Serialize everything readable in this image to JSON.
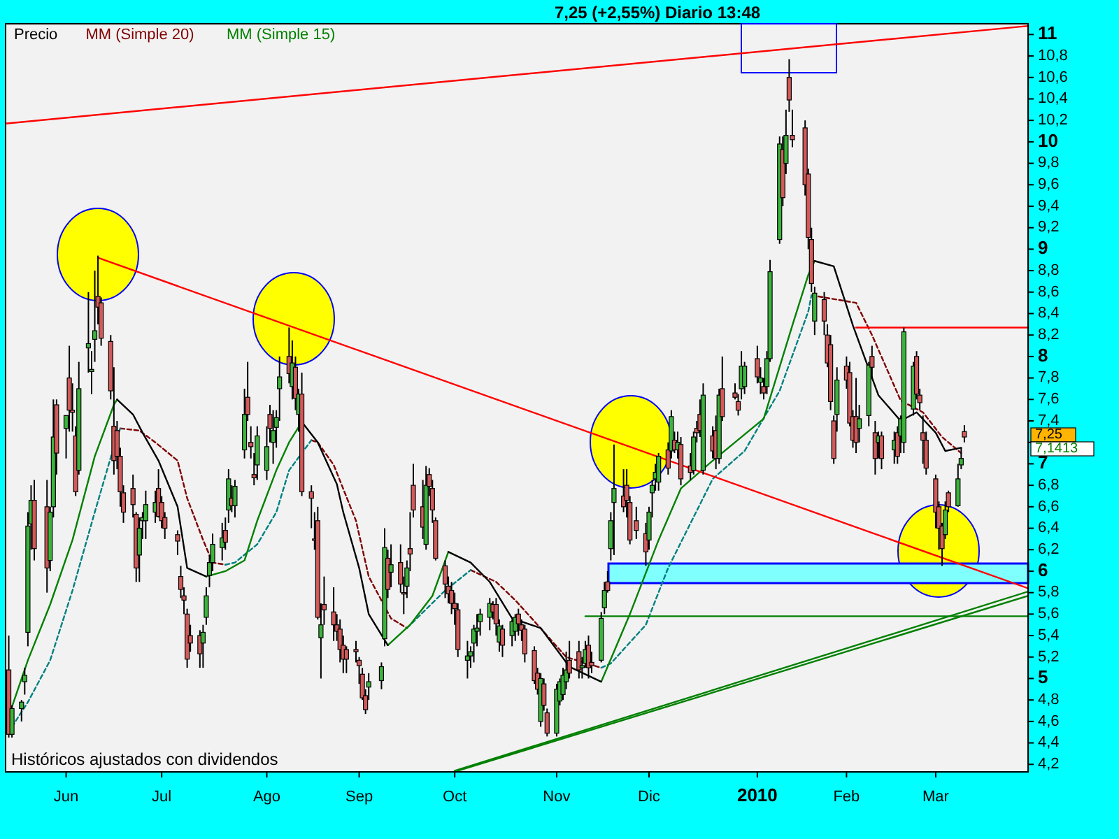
{
  "chart_data": {
    "type": "candlestick",
    "title": "7,25 (+2,55%)    Diario  13:48",
    "annotations": [
      "Históricos ajustados con dividendos",
      "7,25",
      "7,1413"
    ],
    "legend": "top left",
    "grid": false,
    "xlim": [
      "2009-05-13",
      "2010-03-30"
    ],
    "xticks": [
      {
        "value": "2009-06-01",
        "label": "Jun"
      },
      {
        "value": "2009-07-01",
        "label": "Jul"
      },
      {
        "value": "2009-08-03",
        "label": "Ago"
      },
      {
        "value": "2009-09-01",
        "label": "Sep"
      },
      {
        "value": "2009-10-01",
        "label": "Oct"
      },
      {
        "value": "2009-11-02",
        "label": "Nov"
      },
      {
        "value": "2009-12-01",
        "label": "Dic"
      },
      {
        "value": "2010-01-04",
        "label": "2010"
      },
      {
        "value": "2010-02-01",
        "label": "Feb"
      },
      {
        "value": "2010-03-01",
        "label": "Mar"
      }
    ],
    "ylim": [
      4.13,
      11.1
    ],
    "yticks": [
      {
        "value": 4.2,
        "label": "4,2"
      },
      {
        "value": 4.4,
        "label": "4,4"
      },
      {
        "value": 4.6,
        "label": "4,6"
      },
      {
        "value": 4.8,
        "label": "4,8"
      },
      5,
      {
        "value": 5.2,
        "label": "5,2"
      },
      {
        "value": 5.4,
        "label": "5,4"
      },
      {
        "value": 5.6,
        "label": "5,6"
      },
      {
        "value": 5.8,
        "label": "5,8"
      },
      6,
      {
        "value": 6.2,
        "label": "6,2"
      },
      {
        "value": 6.4,
        "label": "6,4"
      },
      {
        "value": 6.6,
        "label": "6,6"
      },
      {
        "value": 6.8,
        "label": "6,8"
      },
      7,
      {
        "value": 7.2,
        "label": null
      },
      {
        "value": 7.4,
        "label": "7,4"
      },
      {
        "value": 7.6,
        "label": "7,6"
      },
      {
        "value": 7.8,
        "label": "7,8"
      },
      8,
      {
        "value": 8.2,
        "label": "8,2"
      },
      {
        "value": 8.4,
        "label": "8,4"
      },
      {
        "value": 8.6,
        "label": "8,6"
      },
      {
        "value": 8.8,
        "label": "8,8"
      },
      9,
      {
        "value": 9.2,
        "label": "9,2"
      },
      {
        "value": 9.4,
        "label": "9,4"
      },
      {
        "value": 9.6,
        "label": "9,6"
      },
      {
        "value": 9.8,
        "label": "9,8"
      },
      10,
      {
        "value": 10.2,
        "label": "10,2"
      },
      {
        "value": 10.4,
        "label": "10,4"
      },
      {
        "value": 10.6,
        "label": "10,6"
      },
      {
        "value": 10.8,
        "label": "10,8"
      },
      11
    ],
    "x": [
      "2009-05-14",
      "2009-05-15",
      "2009-05-18",
      "2009-05-19",
      "2009-05-20",
      "2009-05-21",
      "2009-05-22",
      "2009-05-26",
      "2009-05-27",
      "2009-05-28",
      "2009-05-29",
      "2009-06-01",
      "2009-06-02",
      "2009-06-03",
      "2009-06-04",
      "2009-06-05",
      "2009-06-08",
      "2009-06-09",
      "2009-06-10",
      "2009-06-11",
      "2009-06-12",
      "2009-06-15",
      "2009-06-16",
      "2009-06-17",
      "2009-06-18",
      "2009-06-19",
      "2009-06-22",
      "2009-06-23",
      "2009-06-24",
      "2009-06-25",
      "2009-06-26",
      "2009-06-29",
      "2009-06-30",
      "2009-07-01",
      "2009-07-02",
      "2009-07-06",
      "2009-07-07",
      "2009-07-08",
      "2009-07-09",
      "2009-07-10",
      "2009-07-13",
      "2009-07-14",
      "2009-07-15",
      "2009-07-16",
      "2009-07-17",
      "2009-07-20",
      "2009-07-21",
      "2009-07-22",
      "2009-07-23",
      "2009-07-24",
      "2009-07-27",
      "2009-07-28",
      "2009-07-29",
      "2009-07-30",
      "2009-07-31",
      "2009-08-03",
      "2009-08-04",
      "2009-08-05",
      "2009-08-06",
      "2009-08-07",
      "2009-08-10",
      "2009-08-11",
      "2009-08-12",
      "2009-08-13",
      "2009-08-14",
      "2009-08-17",
      "2009-08-18",
      "2009-08-19",
      "2009-08-20",
      "2009-08-21",
      "2009-08-24",
      "2009-08-25",
      "2009-08-26",
      "2009-08-27",
      "2009-08-28",
      "2009-08-31",
      "2009-09-01",
      "2009-09-02",
      "2009-09-03",
      "2009-09-04",
      "2009-09-08",
      "2009-09-09",
      "2009-09-10",
      "2009-09-11",
      "2009-09-14",
      "2009-09-15",
      "2009-09-16",
      "2009-09-17",
      "2009-09-18",
      "2009-09-21",
      "2009-09-22",
      "2009-09-23",
      "2009-09-24",
      "2009-09-25",
      "2009-09-28",
      "2009-09-29",
      "2009-09-30",
      "2009-10-01",
      "2009-10-02",
      "2009-10-05",
      "2009-10-06",
      "2009-10-07",
      "2009-10-08",
      "2009-10-09",
      "2009-10-12",
      "2009-10-13",
      "2009-10-14",
      "2009-10-15",
      "2009-10-16",
      "2009-10-19",
      "2009-10-20",
      "2009-10-21",
      "2009-10-22",
      "2009-10-23",
      "2009-10-26",
      "2009-10-27",
      "2009-10-28",
      "2009-10-29",
      "2009-10-30",
      "2009-11-02",
      "2009-11-03",
      "2009-11-04",
      "2009-11-05",
      "2009-11-06",
      "2009-11-09",
      "2009-11-10",
      "2009-11-11",
      "2009-11-12",
      "2009-11-13",
      "2009-11-16",
      "2009-11-17",
      "2009-11-18",
      "2009-11-19",
      "2009-11-20",
      "2009-11-23",
      "2009-11-24",
      "2009-11-25",
      "2009-11-27",
      "2009-11-30",
      "2009-12-01",
      "2009-12-02",
      "2009-12-03",
      "2009-12-04",
      "2009-12-07",
      "2009-12-08",
      "2009-12-09",
      "2009-12-10",
      "2009-12-11",
      "2009-12-14",
      "2009-12-15",
      "2009-12-16",
      "2009-12-17",
      "2009-12-18",
      "2009-12-21",
      "2009-12-22",
      "2009-12-23",
      "2009-12-24",
      "2009-12-28",
      "2009-12-29",
      "2009-12-30",
      "2009-12-31",
      "2010-01-04",
      "2010-01-05",
      "2010-01-06",
      "2010-01-07",
      "2010-01-08",
      "2010-01-11",
      "2010-01-12",
      "2010-01-13",
      "2010-01-14",
      "2010-01-15",
      "2010-01-19",
      "2010-01-20",
      "2010-01-21",
      "2010-01-22",
      "2010-01-25",
      "2010-01-26",
      "2010-01-27",
      "2010-01-28",
      "2010-01-29",
      "2010-02-01",
      "2010-02-02",
      "2010-02-03",
      "2010-02-04",
      "2010-02-05",
      "2010-02-08",
      "2010-02-09",
      "2010-02-10",
      "2010-02-11",
      "2010-02-12",
      "2010-02-16",
      "2010-02-17",
      "2010-02-18",
      "2010-02-19",
      "2010-02-22",
      "2010-02-23",
      "2010-02-24",
      "2010-02-25",
      "2010-02-26",
      "2010-03-01",
      "2010-03-02",
      "2010-03-03",
      "2010-03-04",
      "2010-03-05",
      "2010-03-08",
      "2010-03-09",
      "2010-03-10"
    ],
    "series": [
      {
        "name": "Precio",
        "color": "#000000",
        "ohlc": [
          [
            5.08,
            5.4,
            4.45,
            4.48
          ],
          [
            4.48,
            4.75,
            4.45,
            4.72
          ],
          [
            4.72,
            4.8,
            4.6,
            4.78
          ],
          [
            4.97,
            5.1,
            4.85,
            5.03
          ],
          [
            5.43,
            6.55,
            5.3,
            6.42
          ],
          [
            6.44,
            6.8,
            6.2,
            6.66
          ],
          [
            6.66,
            6.85,
            6.1,
            6.21
          ],
          [
            6.6,
            6.85,
            5.8,
            6.03
          ],
          [
            6.1,
            6.6,
            6.0,
            6.55
          ],
          [
            6.6,
            7.6,
            6.5,
            7.25
          ],
          [
            7.55,
            7.6,
            6.9,
            7.1
          ],
          [
            7.33,
            7.45,
            7.05,
            7.45
          ],
          [
            7.8,
            8.1,
            7.3,
            7.5
          ],
          [
            7.5,
            7.75,
            7.3,
            7.48
          ],
          [
            7.26,
            7.35,
            6.7,
            6.74
          ],
          [
            6.94,
            7.95,
            6.9,
            7.7
          ],
          [
            8.08,
            8.6,
            7.85,
            8.12
          ],
          [
            7.86,
            8.05,
            7.65,
            7.88
          ],
          [
            8.16,
            8.8,
            7.95,
            8.24
          ],
          [
            8.56,
            8.94,
            8.3,
            8.46
          ],
          [
            8.5,
            8.55,
            8.1,
            8.17
          ],
          [
            8.14,
            8.2,
            7.6,
            7.68
          ],
          [
            7.35,
            7.9,
            6.9,
            7.03
          ],
          [
            7.31,
            7.4,
            6.95,
            7.07
          ],
          [
            7.07,
            7.15,
            6.6,
            6.74
          ],
          [
            6.73,
            6.8,
            6.45,
            6.55
          ],
          [
            6.77,
            6.9,
            6.5,
            6.62
          ],
          [
            6.53,
            6.55,
            5.9,
            6.03
          ],
          [
            6.15,
            6.5,
            5.9,
            6.4
          ],
          [
            6.47,
            6.55,
            6.3,
            6.5
          ],
          [
            6.47,
            6.75,
            6.3,
            6.62
          ],
          [
            6.55,
            6.75,
            6.45,
            6.64
          ],
          [
            6.77,
            6.95,
            6.5,
            6.51
          ],
          [
            6.64,
            6.7,
            6.4,
            6.47
          ],
          [
            6.5,
            6.55,
            6.3,
            6.4
          ],
          [
            6.34,
            6.38,
            6.15,
            6.28
          ],
          [
            5.95,
            6.05,
            5.75,
            5.83
          ],
          [
            5.77,
            5.85,
            5.6,
            5.73
          ],
          [
            5.6,
            5.65,
            5.1,
            5.18
          ],
          [
            5.4,
            5.5,
            5.25,
            5.33
          ],
          [
            5.4,
            5.45,
            5.1,
            5.23
          ],
          [
            5.33,
            5.5,
            5.1,
            5.43
          ],
          [
            5.57,
            5.85,
            5.5,
            5.77
          ],
          [
            5.96,
            6.15,
            5.85,
            6.08
          ],
          [
            6.08,
            6.35,
            6.0,
            6.25
          ],
          [
            6.22,
            6.45,
            6.1,
            6.31
          ],
          [
            6.38,
            6.5,
            6.2,
            6.27
          ],
          [
            6.57,
            6.95,
            6.45,
            6.86
          ],
          [
            6.68,
            6.8,
            6.55,
            6.61
          ],
          [
            6.61,
            6.85,
            6.5,
            6.79
          ],
          [
            7.13,
            7.7,
            7.05,
            7.46
          ],
          [
            7.62,
            7.95,
            7.4,
            7.46
          ],
          [
            7.2,
            7.35,
            7.05,
            7.16
          ],
          [
            6.9,
            7.1,
            6.8,
            6.87
          ],
          [
            6.99,
            7.35,
            6.85,
            7.26
          ],
          [
            6.94,
            7.35,
            6.85,
            7.16
          ],
          [
            7.46,
            7.55,
            7.2,
            7.33
          ],
          [
            7.2,
            7.5,
            7.0,
            7.31
          ],
          [
            7.34,
            7.5,
            7.15,
            7.43
          ],
          [
            7.7,
            8.0,
            7.4,
            7.81
          ],
          [
            8.0,
            8.27,
            7.75,
            7.84
          ],
          [
            7.72,
            8.15,
            7.6,
            7.94
          ],
          [
            7.9,
            8.0,
            7.5,
            7.61
          ],
          [
            7.46,
            7.7,
            7.3,
            7.65
          ],
          [
            7.65,
            7.85,
            6.7,
            6.74
          ],
          [
            6.74,
            6.8,
            6.4,
            6.68
          ],
          [
            6.3,
            6.55,
            6.2,
            6.29
          ],
          [
            6.47,
            6.6,
            5.55,
            5.57
          ],
          [
            5.38,
            5.7,
            5.0,
            5.5
          ],
          [
            5.69,
            5.95,
            5.5,
            5.64
          ],
          [
            5.62,
            5.85,
            5.35,
            5.5
          ],
          [
            5.5,
            5.6,
            5.35,
            5.44
          ],
          [
            5.46,
            5.55,
            5.15,
            5.27
          ],
          [
            5.31,
            5.4,
            5.05,
            5.18
          ],
          [
            5.27,
            5.3,
            5.05,
            5.18
          ],
          [
            5.27,
            5.35,
            5.15,
            5.25
          ],
          [
            5.17,
            5.2,
            4.95,
            5.12
          ],
          [
            5.04,
            5.1,
            4.8,
            4.82
          ],
          [
            4.84,
            4.9,
            4.67,
            4.71
          ],
          [
            4.92,
            5.05,
            4.8,
            4.97
          ],
          [
            4.98,
            5.15,
            4.9,
            5.11
          ],
          [
            5.37,
            6.4,
            5.3,
            6.22
          ],
          [
            6.12,
            6.2,
            5.75,
            5.83
          ],
          [
            5.99,
            6.25,
            5.85,
            6.06
          ],
          [
            6.08,
            6.25,
            5.8,
            5.88
          ],
          [
            5.8,
            5.95,
            5.6,
            5.79
          ],
          [
            5.86,
            6.1,
            5.75,
            6.03
          ],
          [
            6.21,
            6.55,
            6.0,
            6.16
          ],
          [
            6.8,
            7.0,
            6.5,
            6.57
          ],
          [
            6.6,
            6.85,
            6.3,
            6.41
          ],
          [
            6.25,
            6.98,
            6.2,
            6.8
          ],
          [
            6.9,
            6.96,
            6.7,
            6.79
          ],
          [
            6.77,
            6.85,
            6.45,
            6.57
          ],
          [
            6.47,
            6.5,
            6.1,
            6.12
          ],
          [
            6.05,
            6.1,
            5.75,
            5.88
          ],
          [
            5.86,
            5.95,
            5.7,
            5.79
          ],
          [
            5.82,
            5.9,
            5.6,
            5.7
          ],
          [
            5.7,
            5.8,
            5.5,
            5.65
          ],
          [
            5.64,
            5.7,
            5.2,
            5.27
          ],
          [
            5.17,
            5.35,
            5.0,
            5.21
          ],
          [
            5.21,
            5.3,
            5.1,
            5.25
          ],
          [
            5.33,
            5.5,
            5.15,
            5.46
          ],
          [
            5.44,
            5.6,
            5.3,
            5.47
          ],
          [
            5.53,
            5.65,
            5.4,
            5.6
          ],
          [
            5.57,
            5.75,
            5.45,
            5.7
          ],
          [
            5.69,
            5.72,
            5.55,
            5.62
          ],
          [
            5.69,
            5.75,
            5.4,
            5.51
          ],
          [
            5.34,
            5.55,
            5.25,
            5.49
          ],
          [
            5.46,
            5.5,
            5.2,
            5.31
          ],
          [
            5.4,
            5.55,
            5.3,
            5.53
          ],
          [
            5.44,
            5.6,
            5.35,
            5.57
          ],
          [
            5.6,
            5.65,
            5.4,
            5.51
          ],
          [
            5.5,
            5.55,
            5.35,
            5.45
          ],
          [
            5.46,
            5.5,
            5.15,
            5.23
          ],
          [
            5.26,
            5.3,
            4.95,
            4.98
          ],
          [
            5.05,
            5.1,
            4.85,
            4.9
          ],
          [
            4.6,
            5.05,
            4.55,
            5.0
          ],
          [
            4.95,
            5.0,
            4.7,
            4.75
          ],
          [
            4.68,
            4.72,
            4.46,
            4.49
          ],
          [
            4.49,
            4.95,
            4.46,
            4.9
          ],
          [
            4.79,
            5.0,
            4.75,
            4.97
          ],
          [
            4.85,
            5.1,
            4.8,
            5.03
          ],
          [
            4.97,
            5.25,
            4.9,
            5.08
          ],
          [
            5.17,
            5.35,
            5.0,
            5.05
          ],
          [
            5.25,
            5.35,
            5.0,
            5.08
          ],
          [
            5.1,
            5.2,
            5.0,
            5.12
          ],
          [
            5.14,
            5.35,
            5.1,
            5.27
          ],
          [
            5.31,
            5.4,
            5.0,
            5.1
          ],
          [
            5.15,
            5.25,
            5.05,
            5.12
          ],
          [
            5.17,
            5.62,
            5.15,
            5.56
          ],
          [
            5.66,
            5.9,
            5.6,
            5.82
          ],
          [
            5.9,
            6.0,
            5.8,
            5.82
          ],
          [
            6.21,
            6.55,
            6.1,
            6.47
          ],
          [
            6.64,
            7.18,
            6.15,
            6.77
          ],
          [
            6.7,
            6.95,
            6.55,
            6.6
          ],
          [
            6.8,
            6.95,
            6.5,
            6.66
          ],
          [
            6.64,
            6.7,
            6.25,
            6.29
          ],
          [
            6.47,
            6.6,
            6.3,
            6.38
          ],
          [
            6.35,
            6.45,
            6.05,
            6.18
          ],
          [
            6.29,
            6.6,
            6.2,
            6.55
          ],
          [
            6.73,
            6.85,
            6.5,
            6.8
          ],
          [
            6.86,
            7.0,
            6.75,
            6.92
          ],
          [
            6.83,
            7.1,
            6.75,
            7.07
          ],
          [
            7.13,
            7.2,
            6.9,
            6.96
          ],
          [
            7.12,
            7.5,
            7.05,
            7.44
          ],
          [
            7.22,
            7.3,
            7.1,
            7.13
          ],
          [
            7.13,
            7.3,
            7.05,
            7.2
          ],
          [
            7.18,
            7.25,
            6.8,
            6.86
          ],
          [
            6.98,
            7.1,
            6.85,
            6.92
          ],
          [
            6.94,
            7.3,
            6.9,
            7.25
          ],
          [
            7.33,
            7.4,
            7.2,
            7.29
          ],
          [
            7.46,
            7.6,
            7.25,
            7.31
          ],
          [
            6.94,
            7.75,
            6.9,
            7.64
          ],
          [
            7.26,
            7.35,
            7.05,
            7.12
          ],
          [
            7.31,
            7.45,
            6.95,
            7.05
          ],
          [
            7.05,
            7.7,
            7.0,
            7.64
          ],
          [
            7.7,
            8.0,
            7.4,
            7.44
          ],
          [
            7.66,
            7.75,
            7.6,
            7.62
          ],
          [
            7.58,
            7.65,
            7.45,
            7.5
          ],
          [
            7.7,
            8.05,
            7.6,
            7.91
          ],
          [
            7.72,
            7.95,
            7.65,
            7.91
          ],
          [
            7.98,
            8.1,
            7.75,
            7.81
          ],
          [
            7.76,
            7.9,
            7.65,
            7.8
          ],
          [
            7.72,
            7.8,
            7.6,
            7.66
          ],
          [
            7.72,
            8.05,
            7.65,
            7.98
          ],
          [
            7.98,
            8.9,
            7.95,
            8.79
          ],
          [
            9.09,
            10.05,
            9.05,
            9.98
          ],
          [
            9.93,
            10.05,
            9.4,
            9.48
          ],
          [
            9.8,
            10.3,
            9.7,
            10.06
          ],
          [
            10.6,
            10.77,
            10.28,
            10.39
          ],
          [
            10.06,
            10.3,
            9.95,
            10.02
          ],
          [
            10.13,
            10.2,
            9.5,
            9.6
          ],
          [
            9.7,
            9.75,
            9.0,
            9.11
          ],
          [
            9.09,
            9.2,
            8.6,
            8.68
          ],
          [
            8.33,
            8.65,
            8.2,
            8.59
          ],
          [
            8.53,
            8.6,
            8.2,
            8.33
          ],
          [
            8.2,
            8.3,
            7.9,
            7.94
          ],
          [
            8.11,
            8.2,
            7.5,
            7.58
          ],
          [
            7.4,
            7.45,
            7.0,
            7.05
          ],
          [
            7.46,
            7.9,
            7.3,
            7.78
          ],
          [
            7.91,
            8.0,
            7.7,
            7.78
          ],
          [
            7.85,
            7.95,
            7.35,
            7.38
          ],
          [
            7.44,
            7.5,
            7.15,
            7.22
          ],
          [
            7.44,
            7.8,
            7.1,
            7.2
          ],
          [
            7.33,
            7.55,
            7.2,
            7.42
          ],
          [
            7.45,
            7.95,
            7.35,
            7.92
          ],
          [
            8.0,
            8.1,
            7.8,
            7.9
          ],
          [
            7.29,
            7.4,
            6.9,
            7.05
          ],
          [
            7.2,
            7.3,
            7.05,
            7.26
          ],
          [
            7.26,
            7.3,
            6.95,
            7.05
          ],
          [
            7.13,
            7.3,
            7.0,
            7.22
          ],
          [
            7.29,
            7.35,
            7.0,
            7.07
          ],
          [
            7.26,
            7.45,
            7.1,
            7.42
          ],
          [
            7.2,
            8.27,
            7.1,
            8.23
          ],
          [
            7.51,
            7.95,
            7.45,
            7.91
          ],
          [
            8.0,
            8.05,
            7.6,
            7.65
          ],
          [
            7.64,
            7.7,
            7.5,
            7.57
          ],
          [
            7.29,
            7.45,
            7.0,
            7.22
          ],
          [
            7.22,
            7.3,
            6.9,
            6.96
          ],
          [
            6.86,
            6.9,
            6.4,
            6.55
          ],
          [
            6.6,
            6.65,
            6.2,
            6.4
          ],
          [
            6.42,
            6.45,
            6.05,
            6.21
          ],
          [
            6.34,
            6.65,
            6.3,
            6.57
          ],
          [
            6.73,
            6.75,
            6.55,
            6.6
          ],
          [
            6.61,
            7.0,
            6.6,
            6.86
          ],
          [
            6.99,
            7.15,
            6.95,
            7.05
          ],
          [
            7.3,
            7.36,
            7.2,
            7.25
          ]
        ]
      },
      {
        "type": "line",
        "name": "MM (Simple 20)",
        "color": "#800000",
        "line_style": "dashed",
        "x": [
          "2009-06-18",
          "2009-06-24",
          "2009-06-29",
          "2009-07-06",
          "2009-07-09",
          "2009-07-14",
          "2009-07-17",
          "2009-07-21",
          "2009-07-24",
          "2009-07-31",
          "2009-08-06",
          "2009-08-10",
          "2009-08-17",
          "2009-08-19",
          "2009-08-24",
          "2009-08-31",
          "2009-09-04",
          "2009-09-11",
          "2009-09-16",
          "2009-09-28",
          "2009-10-06",
          "2009-10-14",
          "2009-10-20",
          "2009-10-27",
          "2009-11-05",
          "2009-11-16",
          "2009-11-19",
          "2009-11-30",
          "2009-12-07",
          "2009-12-21",
          "2009-12-31",
          "2010-01-11",
          "2010-01-20",
          "2010-01-21",
          "2010-02-04",
          "2010-02-09",
          "2010-02-18",
          "2010-02-25",
          "2010-03-03",
          "2010-03-09"
        ],
        "values": [
          7.33,
          7.31,
          7.2,
          7.03,
          6.68,
          6.29,
          6.08,
          6.06,
          null,
          null,
          null,
          null,
          7.22,
          7.2,
          6.99,
          6.47,
          5.95,
          5.56,
          5.47,
          null,
          6.01,
          5.9,
          5.73,
          5.5,
          5.2,
          5.1,
          null,
          null,
          null,
          null,
          null,
          null,
          null,
          8.57,
          8.5,
          8.2,
          7.59,
          7.48,
          7.25,
          7.1
        ]
      },
      {
        "type": "line",
        "color": "#008080",
        "line_style": "dashed",
        "x": [
          "2009-05-15",
          "2009-05-20",
          "2009-05-27",
          "2009-06-03",
          "2009-06-10",
          "2009-06-16",
          "2009-06-18",
          "2009-06-24",
          "2009-06-29",
          "2009-07-06",
          "2009-07-09",
          "2009-07-14",
          "2009-07-17",
          "2009-07-21",
          "2009-07-24",
          "2009-07-31",
          "2009-08-06",
          "2009-08-10",
          "2009-08-17",
          "2009-08-19",
          "2009-08-24",
          "2009-08-31",
          "2009-09-04",
          "2009-09-11",
          "2009-09-16",
          "2009-09-28",
          "2009-10-06",
          "2009-10-14",
          "2009-10-20",
          "2009-10-27",
          "2009-11-05",
          "2009-11-16",
          "2009-11-19",
          "2009-11-30",
          "2009-12-07",
          "2009-12-21",
          "2009-12-31",
          "2010-01-11",
          "2010-01-20",
          "2010-01-21"
        ],
        "values": [
          4.55,
          4.78,
          5.17,
          5.82,
          6.55,
          7.16,
          7.33,
          null,
          null,
          null,
          null,
          null,
          null,
          6.06,
          6.08,
          6.25,
          6.55,
          6.94,
          7.22,
          null,
          null,
          null,
          null,
          null,
          5.47,
          5.82,
          6.01,
          null,
          null,
          null,
          null,
          5.1,
          5.14,
          5.5,
          6.03,
          6.86,
          7.12,
          7.68,
          8.42,
          8.57
        ]
      },
      {
        "type": "line",
        "name": "MM (Simple 15)",
        "color": "#008000",
        "x": [
          "2009-05-14",
          "2009-05-20",
          "2009-05-27",
          "2009-06-03",
          "2009-06-10",
          "2009-06-16",
          "2009-06-17",
          "2009-06-22",
          "2009-06-25",
          "2009-06-30",
          "2009-07-06",
          "2009-07-09",
          "2009-07-15",
          "2009-07-21",
          "2009-07-27",
          "2009-07-31",
          "2009-08-06",
          "2009-08-10",
          "2009-08-14",
          "2009-08-19",
          "2009-08-25",
          "2009-08-27",
          "2009-09-01",
          "2009-09-04",
          "2009-09-10",
          "2009-09-17",
          "2009-09-24",
          "2009-09-29",
          "2009-10-06",
          "2009-10-12",
          "2009-10-19",
          "2009-10-28",
          "2009-11-06",
          "2009-11-16",
          "2009-11-25",
          "2009-12-04",
          "2009-12-11",
          "2009-12-21",
          "2010-01-06",
          "2010-01-15",
          "2010-01-20",
          "2010-01-22"
        ],
        "values": [
          4.65,
          5.17,
          5.69,
          6.29,
          7.07,
          7.55,
          7.6,
          null,
          null,
          null,
          null,
          null,
          5.95,
          6.0,
          6.1,
          6.47,
          6.94,
          7.2,
          7.39,
          null,
          null,
          null,
          null,
          null,
          5.31,
          5.5,
          5.77,
          6.18,
          null,
          null,
          null,
          null,
          null,
          4.97,
          5.6,
          6.29,
          6.77,
          7.03,
          7.42,
          8.29,
          8.76,
          8.89
        ]
      },
      {
        "type": "line",
        "color": "#000000",
        "x": [
          "2009-06-17",
          "2009-06-22",
          "2009-06-25",
          "2009-06-30",
          "2009-07-06",
          "2009-07-09",
          "2009-07-15",
          "2009-07-21",
          "2009-07-27",
          "2009-07-31",
          "2009-08-06",
          "2009-08-10",
          "2009-08-14",
          "2009-08-19",
          "2009-08-25",
          "2009-08-27",
          "2009-09-01",
          "2009-09-04",
          "2009-09-10",
          "2009-09-17",
          "2009-09-24",
          "2009-09-29",
          "2009-10-06",
          "2009-10-12",
          "2009-10-19",
          "2009-10-28",
          "2009-11-06",
          "2009-11-16",
          "2009-11-25",
          "2009-12-04",
          "2009-12-11",
          "2009-12-21",
          "2010-01-06",
          "2010-01-15",
          "2010-01-20",
          "2010-01-22",
          "2010-01-28",
          "2010-02-03",
          "2010-02-11",
          "2010-02-18",
          "2010-02-23",
          "2010-03-01",
          "2010-03-04",
          "2010-03-09"
        ],
        "values": [
          7.6,
          7.46,
          7.29,
          7.03,
          6.6,
          6.03,
          5.95,
          null,
          null,
          null,
          null,
          null,
          7.39,
          7.2,
          6.81,
          6.55,
          6.03,
          5.6,
          5.31,
          null,
          null,
          6.18,
          6.08,
          5.9,
          5.56,
          5.47,
          5.11,
          4.97,
          null,
          null,
          null,
          null,
          null,
          null,
          null,
          8.89,
          8.84,
          8.29,
          7.64,
          7.4,
          7.48,
          7.29,
          7.12,
          7.15
        ]
      },
      {
        "type": "line",
        "color": "#ff0000",
        "x": [
          "2009-06-11",
          "2010-03-30"
        ],
        "values": [
          8.92,
          5.84
        ]
      },
      {
        "type": "line",
        "color": "#ff0000",
        "x": [
          "2009-05-13",
          "2010-03-30"
        ],
        "values": [
          10.17,
          11.08
        ]
      },
      {
        "type": "line",
        "color": "#008000",
        "x": [
          "2009-10-02",
          "2010-03-30"
        ],
        "values": [
          4.14,
          5.77
        ]
      },
      {
        "type": "line",
        "color": "#008000",
        "x": [
          "2009-10-01",
          "2010-03-30"
        ],
        "values": [
          4.14,
          5.81
        ]
      },
      {
        "type": "line",
        "color": "#ff0000",
        "x": [
          "2010-02-04",
          "2010-03-30"
        ],
        "values": [
          8.27,
          8.27
        ]
      },
      {
        "type": "line",
        "color": "#008000",
        "x": [
          "2009-11-11",
          "2010-03-30"
        ],
        "values": [
          5.58,
          5.58
        ]
      }
    ]
  }
}
